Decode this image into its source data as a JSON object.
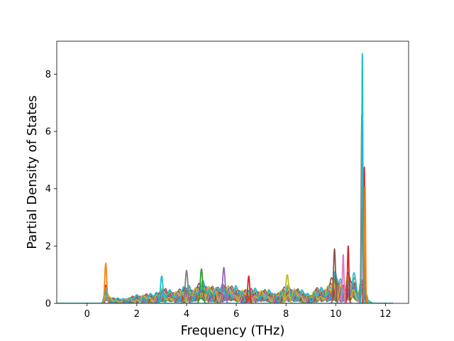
{
  "chart_data": {
    "type": "line",
    "title": "",
    "xlabel": "Frequency (THz)",
    "ylabel": "Partial Density of States",
    "xlim": [
      -1.22,
      12.93
    ],
    "ylim": [
      0,
      9.15
    ],
    "xticks": [
      0,
      2,
      4,
      6,
      8,
      10,
      12
    ],
    "yticks": [
      0,
      2,
      4,
      6,
      8
    ],
    "grid": false,
    "legend": "none",
    "frequency_range": [
      -1.2,
      12.3
    ],
    "envelope": {
      "x": [
        -1.2,
        0.6,
        0.7,
        0.75,
        0.8,
        0.9,
        1.0,
        1.3,
        1.6,
        2.0,
        2.4,
        2.7,
        3.0,
        3.3,
        3.6,
        4.0,
        4.3,
        4.6,
        5.0,
        5.4,
        5.5,
        5.8,
        6.2,
        6.5,
        6.8,
        7.2,
        7.6,
        8.0,
        8.4,
        8.8,
        9.0,
        9.2,
        9.5,
        9.75,
        9.9,
        10.0,
        10.2,
        10.4,
        10.5,
        10.6,
        10.7,
        10.8,
        10.9,
        11.0,
        11.06,
        11.1,
        11.15,
        11.2,
        11.3,
        11.5,
        12.3
      ],
      "y": [
        0,
        0,
        0.5,
        1.4,
        0.8,
        0.4,
        0.3,
        0.3,
        0.35,
        0.45,
        0.55,
        0.6,
        0.95,
        0.7,
        0.75,
        1.15,
        0.9,
        1.2,
        1.1,
        1.0,
        1.25,
        0.95,
        0.9,
        0.95,
        0.8,
        0.75,
        0.7,
        1.0,
        0.85,
        0.7,
        0.6,
        0.9,
        0.8,
        1.2,
        1.85,
        1.9,
        1.5,
        1.3,
        2.0,
        1.2,
        1.7,
        1.4,
        0.5,
        1.8,
        8.7,
        6.6,
        4.7,
        1.0,
        0.2,
        0.0,
        0.0
      ]
    },
    "series": [
      {
        "color": "#1f77b4",
        "scale": 0.34,
        "phase": 0.0
      },
      {
        "color": "#ff7f0e",
        "scale": 0.4,
        "phase": 1.1
      },
      {
        "color": "#2ca02c",
        "scale": 0.46,
        "phase": 2.3
      },
      {
        "color": "#d62728",
        "scale": 0.3,
        "phase": 3.7
      },
      {
        "color": "#9467bd",
        "scale": 0.52,
        "phase": 0.6
      },
      {
        "color": "#8c564b",
        "scale": 0.57,
        "phase": 4.4
      },
      {
        "color": "#e377c2",
        "scale": 0.43,
        "phase": 5.2
      },
      {
        "color": "#7f7f7f",
        "scale": 0.61,
        "phase": 1.8
      },
      {
        "color": "#bcbd22",
        "scale": 0.49,
        "phase": 2.9
      },
      {
        "color": "#17becf",
        "scale": 0.38,
        "phase": 3.3
      },
      {
        "color": "#1f77b4",
        "scale": 0.55,
        "phase": 4.9
      },
      {
        "color": "#ff7f0e",
        "scale": 0.47,
        "phase": 0.3
      },
      {
        "color": "#2ca02c",
        "scale": 0.36,
        "phase": 5.7
      },
      {
        "color": "#d62728",
        "scale": 0.53,
        "phase": 1.4
      },
      {
        "color": "#9467bd",
        "scale": 0.41,
        "phase": 2.6
      },
      {
        "color": "#8c564b",
        "scale": 0.64,
        "phase": 3.9
      },
      {
        "color": "#e377c2",
        "scale": 0.5,
        "phase": 4.6
      },
      {
        "color": "#7f7f7f",
        "scale": 0.44,
        "phase": 0.9
      },
      {
        "color": "#bcbd22",
        "scale": 0.58,
        "phase": 5.4
      },
      {
        "color": "#17becf",
        "scale": 0.68,
        "phase": 2.1
      }
    ],
    "peaks": [
      {
        "color": "#ff7f0e",
        "x": 0.75,
        "y": 1.4,
        "width": 0.04
      },
      {
        "color": "#2ca02c",
        "x": 4.6,
        "y": 1.2,
        "width": 0.05
      },
      {
        "color": "#9467bd",
        "x": 5.5,
        "y": 1.25,
        "width": 0.05
      },
      {
        "color": "#d62728",
        "x": 6.5,
        "y": 0.95,
        "width": 0.04
      },
      {
        "color": "#bcbd22",
        "x": 8.05,
        "y": 1.0,
        "width": 0.06
      },
      {
        "color": "#17becf",
        "x": 3.0,
        "y": 0.95,
        "width": 0.05
      },
      {
        "color": "#7f7f7f",
        "x": 4.0,
        "y": 1.15,
        "width": 0.05
      },
      {
        "color": "#8c564b",
        "x": 9.95,
        "y": 1.9,
        "width": 0.04
      },
      {
        "color": "#d62728",
        "x": 10.5,
        "y": 2.0,
        "width": 0.03
      },
      {
        "color": "#e377c2",
        "x": 10.3,
        "y": 1.7,
        "width": 0.03
      },
      {
        "color": "#8c564b",
        "x": 11.05,
        "y": 6.6,
        "width": 0.025
      },
      {
        "color": "#d62728",
        "x": 11.15,
        "y": 4.75,
        "width": 0.025
      },
      {
        "color": "#ff7f0e",
        "x": 11.18,
        "y": 4.1,
        "width": 0.02
      },
      {
        "color": "#17becf",
        "x": 11.07,
        "y": 8.72,
        "width": 0.022
      }
    ]
  }
}
